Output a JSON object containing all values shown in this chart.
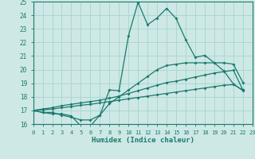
{
  "xlabel": "Humidex (Indice chaleur)",
  "xlim": [
    0,
    23
  ],
  "ylim": [
    16,
    25
  ],
  "yticks": [
    16,
    17,
    18,
    19,
    20,
    21,
    22,
    23,
    24,
    25
  ],
  "xticks": [
    0,
    1,
    2,
    3,
    4,
    5,
    6,
    7,
    8,
    9,
    10,
    11,
    12,
    13,
    14,
    15,
    16,
    17,
    18,
    19,
    20,
    21,
    22,
    23
  ],
  "bg_color": "#cde8e5",
  "grid_color": "#a8d4cf",
  "line_color": "#1a7a6e",
  "lines": [
    [
      17.0,
      16.85,
      16.75,
      16.75,
      16.6,
      15.85,
      15.85,
      16.65,
      18.5,
      18.45,
      22.5,
      24.95,
      23.3,
      23.8,
      24.5,
      23.75,
      22.2,
      20.9,
      21.05,
      20.5,
      19.9,
      18.95,
      18.45
    ],
    [
      17.0,
      16.85,
      16.85,
      16.65,
      16.5,
      16.3,
      16.3,
      16.65,
      17.5,
      18.0,
      18.5,
      19.0,
      19.5,
      20.0,
      20.3,
      20.4,
      20.5,
      20.5,
      20.5,
      20.5,
      20.5,
      20.4,
      19.05
    ],
    [
      17.0,
      17.1,
      17.2,
      17.35,
      17.45,
      17.55,
      17.65,
      17.75,
      17.9,
      18.05,
      18.25,
      18.45,
      18.65,
      18.85,
      19.05,
      19.15,
      19.3,
      19.45,
      19.6,
      19.75,
      19.85,
      19.95,
      18.5
    ],
    [
      17.0,
      17.05,
      17.1,
      17.2,
      17.28,
      17.38,
      17.45,
      17.55,
      17.65,
      17.75,
      17.85,
      17.95,
      18.05,
      18.15,
      18.25,
      18.35,
      18.45,
      18.55,
      18.65,
      18.75,
      18.85,
      18.9,
      18.5
    ]
  ]
}
